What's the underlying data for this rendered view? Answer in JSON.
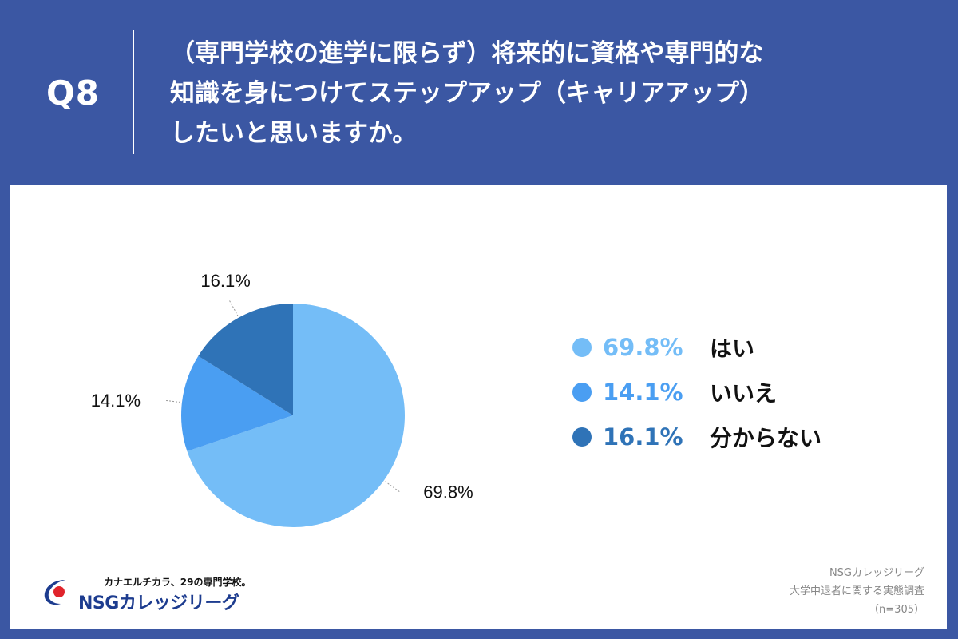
{
  "header": {
    "qnum": "Q8",
    "lines": [
      "（専門学校の進学に限らず）将来的に資格や専門的な",
      "知識を身につけてステップアップ（キャリアアップ）",
      "したいと思いますか。"
    ]
  },
  "chart_data": {
    "type": "pie",
    "slices": [
      {
        "label": "はい",
        "value": 69.8,
        "value_label": "69.8%",
        "color": "#74bdf7"
      },
      {
        "label": "いいえ",
        "value": 14.1,
        "value_label": "14.1%",
        "color": "#4a9ef2"
      },
      {
        "label": "分からない",
        "value": 16.1,
        "value_label": "16.1%",
        "color": "#2f73b7"
      }
    ],
    "legend_position": "right",
    "start": "12 o'clock, clockwise"
  },
  "legend": [
    {
      "pct": "69.8%",
      "label": "はい",
      "color": "#74bdf7"
    },
    {
      "pct": "14.1%",
      "label": "いいえ",
      "color": "#4a9ef2"
    },
    {
      "pct": "16.1%",
      "label": "分からない",
      "color": "#2f73b7"
    }
  ],
  "logo": {
    "tagline": "カナエルチカラ、29の専門学校。",
    "brand": "NSGカレッジリーグ"
  },
  "source": {
    "line1": "NSGカレッジリーグ",
    "line2": "大学中退者に関する実態調査",
    "line3": "（n=305）"
  }
}
